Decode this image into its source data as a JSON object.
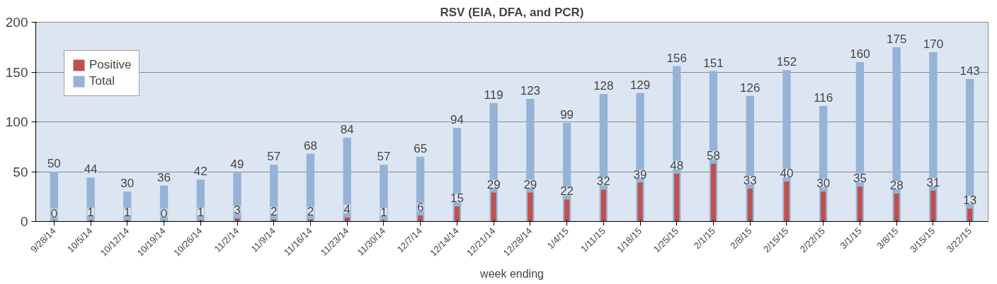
{
  "chart_data": {
    "type": "bar",
    "title": "RSV (EIA, DFA, and PCR)",
    "xlabel": "week ending",
    "categories": [
      "9/28/14",
      "10/5/14",
      "10/12/14",
      "10/19/14",
      "10/26/14",
      "11/2/14",
      "11/9/14",
      "11/16/14",
      "11/23/14",
      "11/30/14",
      "12/7/14",
      "12/14/14",
      "12/21/14",
      "12/28/14",
      "1/4/15",
      "1/11/15",
      "1/18/15",
      "1/25/15",
      "2/1/15",
      "2/8/15",
      "2/15/15",
      "2/22/15",
      "3/1/15",
      "3/8/15",
      "3/15/15",
      "3/22/15"
    ],
    "series": [
      {
        "name": "Total",
        "color": "#95b3d7",
        "values": [
          50,
          44,
          30,
          36,
          42,
          49,
          57,
          68,
          84,
          57,
          65,
          94,
          119,
          123,
          99,
          128,
          129,
          156,
          151,
          126,
          152,
          116,
          160,
          175,
          170,
          143
        ]
      },
      {
        "name": "Positive",
        "color": "#c0504d",
        "values": [
          0,
          1,
          1,
          0,
          1,
          3,
          2,
          2,
          4,
          1,
          6,
          15,
          29,
          29,
          22,
          32,
          39,
          48,
          58,
          33,
          40,
          30,
          35,
          28,
          31,
          13
        ]
      }
    ],
    "ylim": [
      0,
      200
    ],
    "yticks": [
      0,
      50,
      100,
      150,
      200
    ],
    "grid": "y",
    "legend": "top left",
    "data_labels": true
  }
}
